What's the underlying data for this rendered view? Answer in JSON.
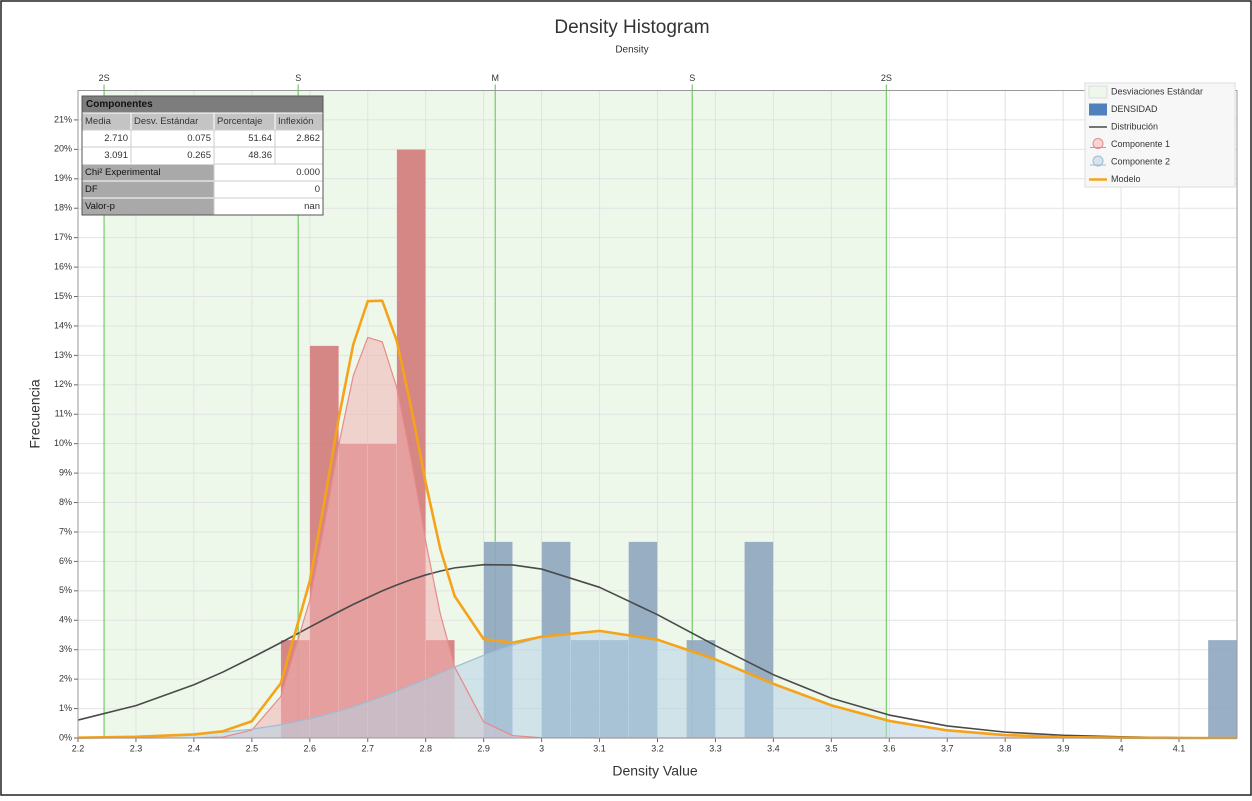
{
  "chart_data": {
    "type": "histogram",
    "title": "Density Histogram",
    "subtitle": "Density",
    "xlabel": "Density Value",
    "ylabel": "Frecuencia",
    "xlim": [
      2.2,
      4.2
    ],
    "ylim": [
      0,
      22
    ],
    "xticks": [
      2.2,
      2.3,
      2.4,
      2.5,
      2.6,
      2.7,
      2.8,
      2.9,
      3,
      3.1,
      3.2,
      3.3,
      3.4,
      3.5,
      3.6,
      3.7,
      3.8,
      3.9,
      4,
      4.1
    ],
    "yticks": [
      {
        "value": 0,
        "label": "0%"
      },
      {
        "value": 1,
        "label": "1%"
      },
      {
        "value": 2,
        "label": "2%"
      },
      {
        "value": 3,
        "label": "3%"
      },
      {
        "value": 4,
        "label": "4%"
      },
      {
        "value": 5,
        "label": "5%"
      },
      {
        "value": 6,
        "label": "6%"
      },
      {
        "value": 7,
        "label": "7%"
      },
      {
        "value": 8,
        "label": "8%"
      },
      {
        "value": 9,
        "label": "9%"
      },
      {
        "value": 10,
        "label": "10%"
      },
      {
        "value": 11,
        "label": "11%"
      },
      {
        "value": 12,
        "label": "12%"
      },
      {
        "value": 13,
        "label": "13%"
      },
      {
        "value": 14,
        "label": "14%"
      },
      {
        "value": 15,
        "label": "15%"
      },
      {
        "value": 16,
        "label": "16%"
      },
      {
        "value": 17,
        "label": "17%"
      },
      {
        "value": 18,
        "label": "18%"
      },
      {
        "value": 19,
        "label": "19%"
      },
      {
        "value": 20,
        "label": "20%"
      },
      {
        "value": 21,
        "label": "21%"
      }
    ],
    "grid": true,
    "legend": "upper right",
    "band": {
      "name": "Desviaciones Estándar",
      "color": "#eef8ea",
      "line_color": "#7ccf6e"
    },
    "reference_lines": [
      {
        "label": "2S",
        "x": 2.245
      },
      {
        "label": "S",
        "x": 2.58
      },
      {
        "label": "M",
        "x": 2.92
      },
      {
        "label": "S",
        "x": 3.26
      },
      {
        "label": "2S",
        "x": 3.595
      }
    ],
    "histogram": {
      "name": "DENSIDAD",
      "color": "#4f81bd",
      "bins": [
        2.55,
        2.6,
        2.65,
        2.7,
        2.75,
        2.8,
        2.85,
        2.9,
        2.95,
        3.0,
        3.05,
        3.1,
        3.15,
        3.2,
        3.25,
        3.3,
        3.35,
        3.4,
        3.45,
        3.5,
        3.55,
        3.6,
        3.65,
        3.7,
        3.75,
        3.8,
        3.85,
        3.9,
        3.95,
        4.0,
        4.05,
        4.1,
        4.15,
        4.2
      ],
      "counts": [
        3.33,
        13.33,
        10,
        10,
        20,
        3.33,
        0,
        6.67,
        0,
        6.67,
        3.33,
        3.33,
        6.67,
        0,
        3.33,
        0,
        6.67,
        0,
        0,
        0,
        0,
        0,
        0,
        0,
        0,
        0,
        0,
        0,
        0,
        0,
        0,
        0,
        3.33
      ],
      "colors": [
        "#d17a7a",
        "#d17a7a",
        "#d17a7a",
        "#d17a7a",
        "#d17a7a",
        "#d17a7a",
        "#d17a7a",
        "#8ea6bf",
        "#8ea6bf",
        "#8ea6bf",
        "#8ea6bf",
        "#8ea6bf",
        "#8ea6bf",
        "#8ea6bf",
        "#8ea6bf",
        "#8ea6bf",
        "#8ea6bf",
        "#8ea6bf",
        "#8ea6bf",
        "#8ea6bf",
        "#8ea6bf",
        "#8ea6bf",
        "#8ea6bf",
        "#8ea6bf",
        "#8ea6bf",
        "#8ea6bf",
        "#8ea6bf",
        "#8ea6bf",
        "#8ea6bf",
        "#8ea6bf",
        "#8ea6bf",
        "#8ea6bf",
        "#8ea6bf"
      ]
    },
    "x": [
      2.2,
      2.3,
      2.4,
      2.45,
      2.5,
      2.55,
      2.6,
      2.625,
      2.65,
      2.675,
      2.7,
      2.725,
      2.75,
      2.775,
      2.8,
      2.825,
      2.85,
      2.9,
      2.95,
      3.0,
      3.1,
      3.2,
      3.3,
      3.4,
      3.5,
      3.6,
      3.7,
      3.8,
      3.9,
      4.0,
      4.1,
      4.2
    ],
    "series": [
      {
        "name": "Distribución",
        "color": "#4a4a4a",
        "values": [
          0.61,
          1.1,
          1.81,
          2.24,
          2.73,
          3.24,
          3.77,
          4.03,
          4.29,
          4.54,
          4.77,
          5.0,
          5.2,
          5.38,
          5.54,
          5.67,
          5.78,
          5.89,
          5.88,
          5.74,
          5.12,
          4.19,
          3.14,
          2.15,
          1.35,
          0.78,
          0.41,
          0.2,
          0.09,
          0.04,
          0.01,
          0
        ]
      },
      {
        "name": "Componente 1",
        "color": "#e88a8a",
        "fill": "#f3b3b3",
        "values": [
          0,
          0,
          0.003,
          0.03,
          0.27,
          1.41,
          4.68,
          7.22,
          9.97,
          12.31,
          13.61,
          13.46,
          11.91,
          9.43,
          6.68,
          4.24,
          2.41,
          0.55,
          0.08,
          0.01,
          0,
          0,
          0,
          0,
          0,
          0,
          0,
          0,
          0,
          0,
          0,
          0
        ]
      },
      {
        "name": "Componente 2",
        "color": "#9dbdd6",
        "fill": "#b7d2e6",
        "values": [
          0.01,
          0.04,
          0.12,
          0.2,
          0.3,
          0.45,
          0.65,
          0.78,
          0.91,
          1.06,
          1.23,
          1.4,
          1.59,
          1.79,
          1.99,
          2.2,
          2.41,
          2.81,
          3.16,
          3.43,
          3.64,
          3.34,
          2.67,
          1.84,
          1.11,
          0.58,
          0.26,
          0.1,
          0.03,
          0.01,
          0,
          0
        ]
      },
      {
        "name": "Modelo",
        "color": "#f5a31a",
        "values": [
          0.01,
          0.04,
          0.12,
          0.23,
          0.57,
          1.86,
          5.33,
          8.0,
          10.88,
          13.37,
          14.84,
          14.86,
          13.5,
          11.22,
          8.67,
          6.44,
          4.82,
          3.36,
          3.24,
          3.44,
          3.64,
          3.34,
          2.67,
          1.84,
          1.11,
          0.58,
          0.26,
          0.1,
          0.03,
          0.01,
          0,
          0
        ]
      }
    ],
    "stats_table": {
      "title": "Componentes",
      "columns": [
        "Media",
        "Desv. Estándar",
        "Porcentaje",
        "Inflexión"
      ],
      "rows": [
        [
          "2.710",
          "0.075",
          "51.64",
          "2.862"
        ],
        [
          "3.091",
          "0.265",
          "48.36",
          null
        ]
      ],
      "summary": [
        [
          "Chi² Experimental",
          "0.000"
        ],
        [
          "DF",
          "0"
        ],
        [
          "Valor-p",
          "nan"
        ]
      ]
    }
  }
}
